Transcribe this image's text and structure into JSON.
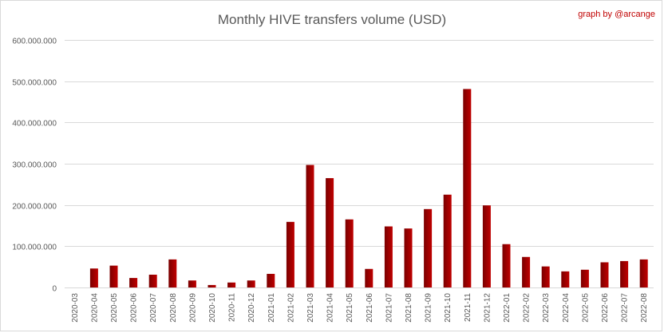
{
  "chart_data": {
    "type": "bar",
    "title": "Monthly HIVE transfers volume (USD)",
    "credit": "graph by @arcange",
    "xlabel": "",
    "ylabel": "",
    "ylim": [
      0,
      600000000
    ],
    "yticks": [
      0,
      100000000,
      200000000,
      300000000,
      400000000,
      500000000,
      600000000
    ],
    "ytick_labels": [
      "0",
      "100.000.000",
      "200.000.000",
      "300.000.000",
      "400.000.000",
      "500.000.000",
      "600.000.000"
    ],
    "grid": true,
    "legend": "none",
    "bar_color": "#c00000",
    "bar_color_dark": "#7a0000",
    "categories": [
      "2020-03",
      "2020-04",
      "2020-05",
      "2020-06",
      "2020-07",
      "2020-08",
      "2020-09",
      "2020-10",
      "2020-11",
      "2020-12",
      "2021-01",
      "2021-02",
      "2021-03",
      "2021-04",
      "2021-05",
      "2021-06",
      "2021-07",
      "2021-08",
      "2021-09",
      "2021-10",
      "2021-11",
      "2021-12",
      "2022-01",
      "2022-02",
      "2022-03",
      "2022-04",
      "2022-05",
      "2022-06",
      "2022-07",
      "2022-08"
    ],
    "values": [
      0,
      46000000,
      53000000,
      23000000,
      31000000,
      68000000,
      17000000,
      6000000,
      12000000,
      17000000,
      33000000,
      159000000,
      297000000,
      265000000,
      165000000,
      45000000,
      148000000,
      143000000,
      190000000,
      225000000,
      481000000,
      199000000,
      105000000,
      74000000,
      51000000,
      39000000,
      43000000,
      61000000,
      64000000,
      68000000
    ]
  }
}
